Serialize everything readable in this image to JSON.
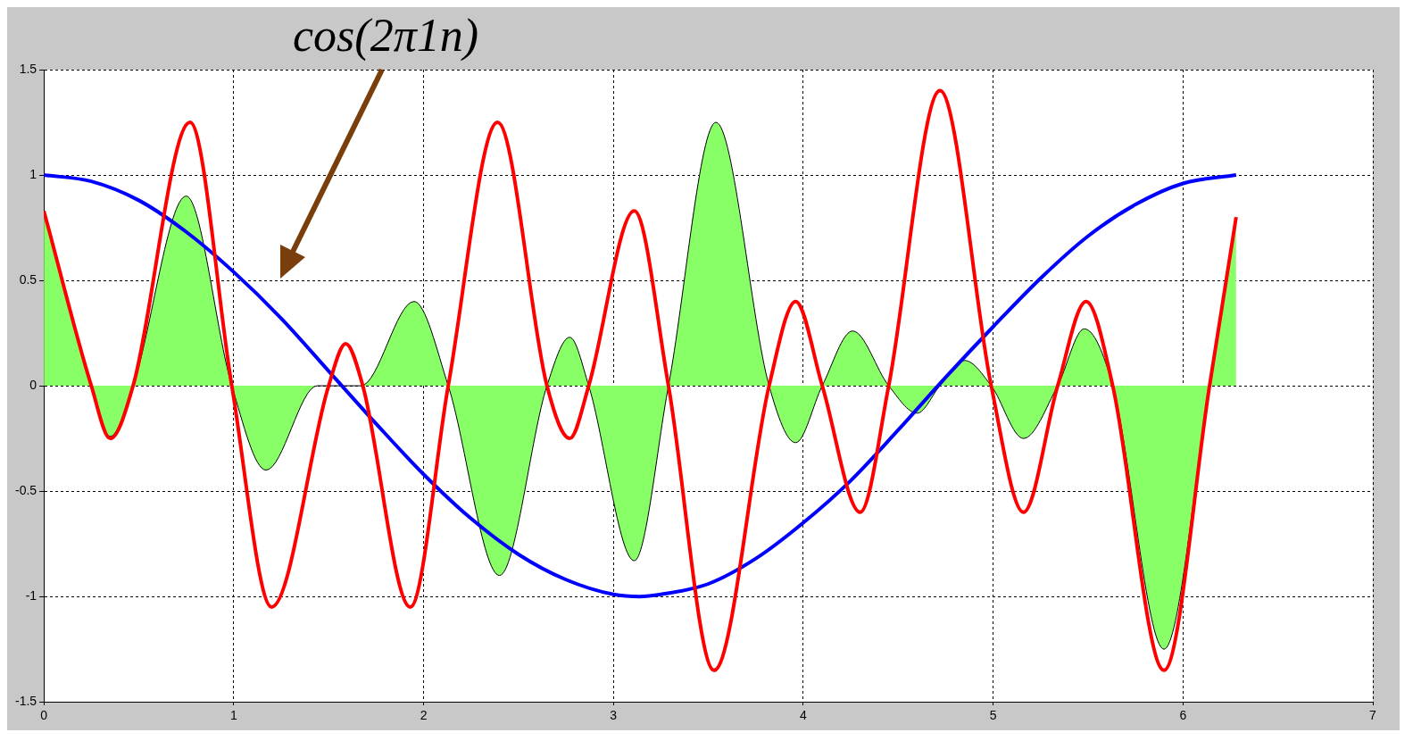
{
  "chart_data": {
    "type": "line",
    "xlim": [
      0,
      7
    ],
    "xticks": [
      0,
      1,
      2,
      3,
      4,
      5,
      6,
      7
    ],
    "ylim": [
      -1.5,
      1.5
    ],
    "yticks": [
      -1.5,
      -1,
      -0.5,
      0,
      0.5,
      1,
      1.5
    ],
    "grid": true,
    "legend": false,
    "marker": "none",
    "line_style": "solid",
    "annotations": [
      "cos(2π1n)"
    ],
    "series": [
      {
        "type": "area",
        "color": "#88ff66",
        "x": [
          0,
          0.25,
          0.35,
          0.47,
          0.75,
          0.99,
          1.17,
          1.44,
          1.57,
          1.67,
          1.95,
          2.13,
          2.4,
          2.65,
          2.77,
          2.87,
          3.11,
          3.29,
          3.54,
          3.82,
          3.96,
          4.1,
          4.26,
          4.45,
          4.6,
          4.72,
          4.85,
          4.99,
          5.16,
          5.34,
          5.48,
          5.63,
          5.9,
          6.14,
          6.28
        ],
        "values": [
          0.83,
          0,
          -0.24,
          0,
          0.9,
          0,
          -0.4,
          0,
          0,
          0,
          0.4,
          0,
          -0.9,
          0,
          0.23,
          0,
          -0.83,
          0,
          1.25,
          0,
          -0.27,
          0,
          0.26,
          0,
          -0.13,
          0,
          0.12,
          0,
          -0.25,
          0,
          0.27,
          0,
          -1.25,
          0,
          0.8
        ]
      },
      {
        "type": "line",
        "color": "#ff0000",
        "x": [
          0,
          0.25,
          0.35,
          0.47,
          0.77,
          0.99,
          1.2,
          1.5,
          1.59,
          1.68,
          1.93,
          2.13,
          2.39,
          2.65,
          2.77,
          2.87,
          3.11,
          3.29,
          3.53,
          3.82,
          3.96,
          4.1,
          4.3,
          4.45,
          4.72,
          4.99,
          5.16,
          5.34,
          5.49,
          5.63,
          5.9,
          6.14,
          6.28
        ],
        "values": [
          0.83,
          0,
          -0.25,
          0,
          1.25,
          0,
          -1.05,
          0,
          0.2,
          0,
          -1.05,
          0,
          1.25,
          0,
          -0.25,
          0,
          0.83,
          0,
          -1.35,
          0,
          0.4,
          0,
          -0.6,
          0,
          1.4,
          0,
          -0.6,
          0,
          0.4,
          0,
          -1.35,
          0,
          0.8
        ]
      },
      {
        "type": "line",
        "color": "#0000ff",
        "x": [
          0,
          0.25,
          0.5,
          0.75,
          1,
          1.25,
          1.5,
          1.75,
          2,
          2.25,
          2.5,
          2.75,
          3,
          3.14,
          3.25,
          3.5,
          3.75,
          4,
          4.25,
          4.5,
          4.75,
          5,
          5.25,
          5.5,
          5.75,
          6,
          6.28
        ],
        "values": [
          1,
          0.97,
          0.88,
          0.73,
          0.54,
          0.32,
          0.07,
          -0.18,
          -0.42,
          -0.63,
          -0.8,
          -0.92,
          -0.99,
          -1,
          -0.99,
          -0.94,
          -0.82,
          -0.65,
          -0.45,
          -0.21,
          0.04,
          0.28,
          0.51,
          0.71,
          0.86,
          0.96,
          1
        ]
      }
    ]
  }
}
